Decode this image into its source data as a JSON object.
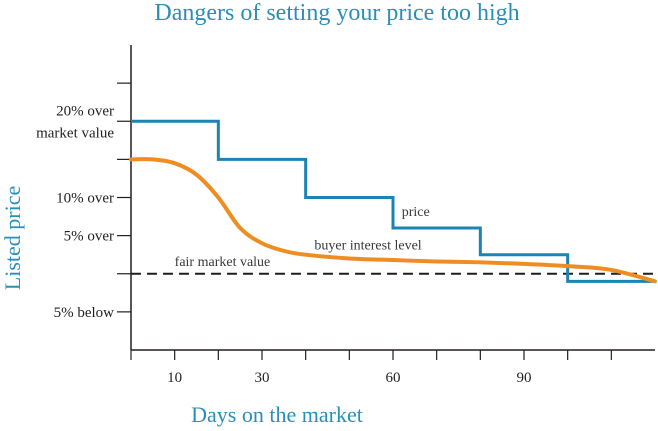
{
  "chart_data": {
    "type": "line",
    "title": "Dangers of setting your price too high",
    "xlabel": "Days on the market",
    "ylabel": "Listed price",
    "x_ticks": [
      0,
      10,
      20,
      30,
      40,
      50,
      60,
      70,
      80,
      90,
      100,
      110
    ],
    "x_tick_labels": [
      {
        "x": 10,
        "label": "10"
      },
      {
        "x": 30,
        "label": "30"
      },
      {
        "x": 60,
        "label": "60"
      },
      {
        "x": 90,
        "label": "90"
      }
    ],
    "xlim": [
      0,
      120
    ],
    "ylim": [
      -10,
      30
    ],
    "y_ticks": [
      -5,
      0,
      5,
      10,
      15,
      20,
      25
    ],
    "y_tick_labels": [
      {
        "y": 20,
        "lines": [
          "20% over",
          "market value"
        ]
      },
      {
        "y": 10,
        "lines": [
          "10% over"
        ]
      },
      {
        "y": 5,
        "lines": [
          "5% over"
        ]
      },
      {
        "y": -5,
        "lines": [
          "5% below"
        ]
      }
    ],
    "series": [
      {
        "name": "price",
        "color": "#1b84b3",
        "style": "step",
        "points": [
          [
            0,
            20.0
          ],
          [
            20,
            20.0
          ],
          [
            20,
            15.0
          ],
          [
            40,
            15.0
          ],
          [
            40,
            10.0
          ],
          [
            60,
            10.0
          ],
          [
            60,
            6.0
          ],
          [
            80,
            6.0
          ],
          [
            80,
            2.5
          ],
          [
            100,
            2.5
          ],
          [
            100,
            -1.0
          ],
          [
            120,
            -1.0
          ]
        ]
      },
      {
        "name": "buyer interest level",
        "color": "#ee8d22",
        "style": "smooth",
        "points": [
          [
            0,
            15.0
          ],
          [
            5,
            15.0
          ],
          [
            10,
            14.5
          ],
          [
            15,
            13.0
          ],
          [
            20,
            10.0
          ],
          [
            25,
            6.0
          ],
          [
            30,
            4.0
          ],
          [
            35,
            3.0
          ],
          [
            40,
            2.5
          ],
          [
            50,
            2.0
          ],
          [
            60,
            1.8
          ],
          [
            70,
            1.6
          ],
          [
            80,
            1.5
          ],
          [
            90,
            1.3
          ],
          [
            100,
            1.0
          ],
          [
            110,
            0.5
          ],
          [
            120,
            -1.0
          ]
        ]
      },
      {
        "name": "fair market value",
        "color": "#231f20",
        "style": "dashed",
        "points": [
          [
            0,
            0
          ],
          [
            120,
            0
          ]
        ]
      }
    ],
    "annotations": [
      {
        "text": "price",
        "x": 62,
        "y": 7.6
      },
      {
        "text": "buyer interest level",
        "x": 42,
        "y": 3.2
      },
      {
        "text": "fair market value",
        "x": 10,
        "y": 1.0
      }
    ],
    "grid": false,
    "legend": "none"
  }
}
